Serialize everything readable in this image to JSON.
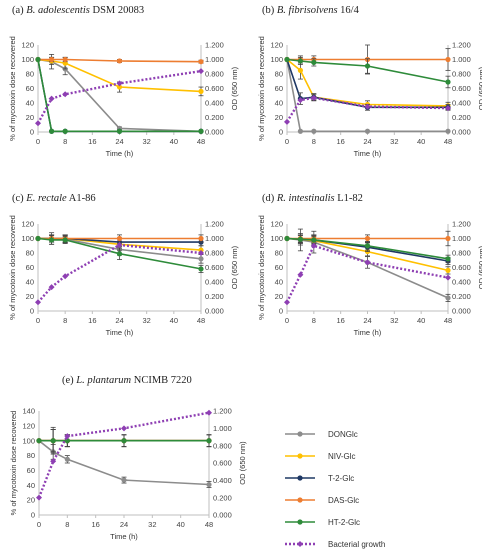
{
  "figure": {
    "legend": [
      {
        "label": "DONGlc",
        "color": "#8c8c8c",
        "marker": "circle",
        "dashed": false
      },
      {
        "label": "NIV-Glc",
        "color": "#ffc000",
        "marker": "circle",
        "dashed": false
      },
      {
        "label": "T-2-Glc",
        "color": "#1f3864",
        "marker": "circle",
        "dashed": false
      },
      {
        "label": "DAS-Glc",
        "color": "#ed7d31",
        "marker": "circle",
        "dashed": false
      },
      {
        "label": "HT-2-Glc",
        "color": "#2e8b3a",
        "marker": "circle",
        "dashed": false
      },
      {
        "label": "Bacterial growth",
        "color": "#8e3fb3",
        "marker": "diamond",
        "dashed": true
      }
    ]
  },
  "chart_data": [
    {
      "type": "line",
      "title_prefix": "(a)",
      "title_species": "B. adolescentis",
      "title_strain": "DSM 20083",
      "xlabel": "Time (h)",
      "ylabel": "% of mycotoxin dose recovered",
      "y2label": "OD (650 nm)",
      "xticks": [
        0,
        8,
        16,
        24,
        32,
        40,
        48
      ],
      "ylim": [
        0,
        120
      ],
      "yticks": [
        0,
        20,
        40,
        60,
        80,
        100,
        120
      ],
      "y2lim": [
        0,
        1.2
      ],
      "y2ticks": [
        "0.000",
        "0.200",
        "0.400",
        "0.600",
        "0.800",
        "1.000",
        "1.200"
      ],
      "series": [
        {
          "name": "DONGlc",
          "x": [
            0,
            4,
            8,
            24,
            48
          ],
          "y": [
            100,
            97,
            87,
            5,
            1
          ],
          "err": [
            0,
            10,
            8,
            2,
            0
          ]
        },
        {
          "name": "NIV-Glc",
          "x": [
            0,
            4,
            8,
            24,
            48
          ],
          "y": [
            100,
            98,
            95,
            62,
            56
          ],
          "err": [
            0,
            5,
            8,
            7,
            6
          ]
        },
        {
          "name": "T-2-Glc",
          "x": [
            0,
            4,
            8,
            24,
            48
          ],
          "y": [
            100,
            1,
            1,
            1,
            1
          ],
          "err": [
            0,
            0,
            0,
            0,
            0
          ]
        },
        {
          "name": "DAS-Glc",
          "x": [
            0,
            4,
            8,
            24,
            48
          ],
          "y": [
            100,
            100,
            100,
            98,
            97
          ],
          "err": [
            0,
            3,
            3,
            2,
            2
          ]
        },
        {
          "name": "HT-2-Glc",
          "x": [
            0,
            4,
            8,
            24,
            48
          ],
          "y": [
            100,
            1,
            1,
            1,
            1
          ],
          "err": [
            0,
            0,
            0,
            0,
            0
          ]
        },
        {
          "name": "Bacterial growth",
          "x": [
            0,
            4,
            8,
            24,
            48
          ],
          "y": [
            0.12,
            0.46,
            0.52,
            0.67,
            0.84
          ],
          "axis": "right"
        }
      ]
    },
    {
      "type": "line",
      "title_prefix": "(b)",
      "title_species": "B. fibrisolvens",
      "title_strain": "16/4",
      "xlabel": "Time (h)",
      "ylabel": "% of mycotoxin dose recovered",
      "y2label": "OD (650 nm)",
      "xticks": [
        0,
        8,
        16,
        24,
        32,
        40,
        48
      ],
      "ylim": [
        0,
        120
      ],
      "yticks": [
        0,
        20,
        40,
        60,
        80,
        100,
        120
      ],
      "y2lim": [
        0,
        1.2
      ],
      "y2ticks": [
        "0.000",
        "0.200",
        "0.400",
        "0.600",
        "0.800",
        "1.000",
        "1.200"
      ],
      "series": [
        {
          "name": "DONGlc",
          "x": [
            0,
            4,
            8,
            24,
            48
          ],
          "y": [
            100,
            1,
            1,
            1,
            1
          ],
          "err": [
            0,
            0,
            0,
            0,
            0
          ]
        },
        {
          "name": "NIV-Glc",
          "x": [
            0,
            4,
            8,
            24,
            48
          ],
          "y": [
            100,
            85,
            48,
            38,
            36
          ],
          "err": [
            0,
            12,
            5,
            5,
            5
          ]
        },
        {
          "name": "T-2-Glc",
          "x": [
            0,
            4,
            8,
            24,
            48
          ],
          "y": [
            100,
            46,
            48,
            34,
            34
          ],
          "err": [
            0,
            8,
            4,
            4,
            4
          ]
        },
        {
          "name": "DAS-Glc",
          "x": [
            0,
            4,
            8,
            24,
            48
          ],
          "y": [
            100,
            100,
            100,
            100,
            100
          ],
          "err": [
            0,
            5,
            5,
            20,
            15
          ]
        },
        {
          "name": "HT-2-Glc",
          "x": [
            0,
            4,
            8,
            24,
            48
          ],
          "y": [
            100,
            98,
            96,
            91,
            69
          ],
          "err": [
            0,
            5,
            5,
            10,
            8
          ]
        },
        {
          "name": "Bacterial growth",
          "x": [
            0,
            4,
            8,
            24,
            48
          ],
          "y": [
            0.14,
            0.44,
            0.47,
            0.35,
            0.33
          ],
          "axis": "right"
        }
      ]
    },
    {
      "type": "line",
      "title_prefix": "(c)",
      "title_species": "E. rectale",
      "title_strain": "A1-86",
      "xlabel": "Time (h)",
      "ylabel": "% of mycotoxin dose recovered",
      "y2label": "OD (650 nm)",
      "xticks": [
        0,
        8,
        16,
        24,
        32,
        40,
        48
      ],
      "ylim": [
        0,
        120
      ],
      "yticks": [
        0,
        20,
        40,
        60,
        80,
        100,
        120
      ],
      "y2lim": [
        0,
        1.2
      ],
      "y2ticks": [
        "0.000",
        "0.200",
        "0.400",
        "0.600",
        "0.800",
        "1.000",
        "1.200"
      ],
      "series": [
        {
          "name": "DONGlc",
          "x": [
            0,
            4,
            8,
            24,
            48
          ],
          "y": [
            100,
            100,
            99,
            85,
            72
          ],
          "err": [
            0,
            8,
            5,
            8,
            6
          ]
        },
        {
          "name": "NIV-Glc",
          "x": [
            0,
            4,
            8,
            24,
            48
          ],
          "y": [
            100,
            100,
            100,
            92,
            84
          ],
          "err": [
            0,
            5,
            5,
            8,
            6
          ]
        },
        {
          "name": "T-2-Glc",
          "x": [
            0,
            4,
            8,
            24,
            48
          ],
          "y": [
            100,
            100,
            100,
            95,
            95
          ],
          "err": [
            0,
            5,
            5,
            6,
            5
          ]
        },
        {
          "name": "DAS-Glc",
          "x": [
            0,
            4,
            8,
            24,
            48
          ],
          "y": [
            100,
            100,
            100,
            100,
            100
          ],
          "err": [
            0,
            5,
            5,
            5,
            5
          ]
        },
        {
          "name": "HT-2-Glc",
          "x": [
            0,
            4,
            8,
            24,
            48
          ],
          "y": [
            100,
            98,
            98,
            79,
            58
          ],
          "err": [
            0,
            6,
            5,
            8,
            5
          ]
        },
        {
          "name": "Bacterial growth",
          "x": [
            0,
            4,
            8,
            24,
            48
          ],
          "y": [
            0.12,
            0.33,
            0.48,
            0.91,
            0.8
          ],
          "axis": "right"
        }
      ]
    },
    {
      "type": "line",
      "title_prefix": "(d)",
      "title_species": "R. intestinalis",
      "title_strain": "L1-82",
      "xlabel": "Time (h)",
      "ylabel": "% of mycotoxin dose recovered",
      "y2label": "OD (650 nm)",
      "xticks": [
        0,
        8,
        16,
        24,
        32,
        40,
        48
      ],
      "ylim": [
        0,
        120
      ],
      "yticks": [
        0,
        20,
        40,
        60,
        80,
        100,
        120
      ],
      "y2lim": [
        0,
        1.2
      ],
      "y2ticks": [
        "0.000",
        "0.200",
        "0.400",
        "0.600",
        "0.800",
        "1.000",
        "1.200"
      ],
      "series": [
        {
          "name": "DONGlc",
          "x": [
            0,
            4,
            8,
            24,
            48
          ],
          "y": [
            100,
            98,
            95,
            67,
            18
          ],
          "err": [
            0,
            15,
            15,
            8,
            5
          ]
        },
        {
          "name": "NIV-Glc",
          "x": [
            0,
            4,
            8,
            24,
            48
          ],
          "y": [
            100,
            99,
            97,
            82,
            56
          ],
          "err": [
            0,
            8,
            8,
            6,
            5
          ]
        },
        {
          "name": "T-2-Glc",
          "x": [
            0,
            4,
            8,
            24,
            48
          ],
          "y": [
            100,
            99,
            98,
            88,
            69
          ],
          "err": [
            0,
            6,
            6,
            6,
            5
          ]
        },
        {
          "name": "DAS-Glc",
          "x": [
            0,
            4,
            8,
            24,
            48
          ],
          "y": [
            100,
            100,
            100,
            100,
            100
          ],
          "err": [
            0,
            5,
            5,
            5,
            10
          ]
        },
        {
          "name": "HT-2-Glc",
          "x": [
            0,
            4,
            8,
            24,
            48
          ],
          "y": [
            100,
            99,
            98,
            90,
            72
          ],
          "err": [
            0,
            5,
            5,
            6,
            5
          ]
        },
        {
          "name": "Bacterial growth",
          "x": [
            0,
            4,
            8,
            24,
            48
          ],
          "y": [
            0.12,
            0.5,
            0.9,
            0.67,
            0.46
          ],
          "axis": "right"
        }
      ]
    },
    {
      "type": "line",
      "title_prefix": "(e)",
      "title_species": "L. plantarum",
      "title_strain": "NCIMB 7220",
      "xlabel": "Time (h)",
      "ylabel": "% of mycotoxin dose recovered",
      "y2label": "OD (650 nm)",
      "xticks": [
        0,
        8,
        16,
        24,
        32,
        40,
        48
      ],
      "ylim": [
        0,
        140
      ],
      "yticks": [
        0,
        20,
        40,
        60,
        80,
        100,
        120,
        140
      ],
      "y2lim": [
        0,
        1.2
      ],
      "y2ticks": [
        "0.000",
        "0.200",
        "0.400",
        "0.600",
        "0.800",
        "1.000",
        "1.200"
      ],
      "series": [
        {
          "name": "DONGlc",
          "x": [
            0,
            4,
            8,
            24,
            48
          ],
          "y": [
            100,
            85,
            75,
            47,
            41
          ],
          "err": [
            0,
            10,
            5,
            4,
            4
          ]
        },
        {
          "name": "NIV-Glc",
          "x": [
            0,
            4,
            8,
            24,
            48
          ],
          "y": [
            100,
            100,
            100,
            100,
            100
          ],
          "err": [
            0,
            15,
            8,
            8,
            8
          ]
        },
        {
          "name": "T-2-Glc",
          "x": [
            0,
            4,
            8,
            24,
            48
          ],
          "y": [
            100,
            100,
            100,
            100,
            100
          ],
          "err": [
            0,
            15,
            8,
            8,
            8
          ]
        },
        {
          "name": "DAS-Glc",
          "x": [
            0,
            4,
            8,
            24,
            48
          ],
          "y": [
            100,
            100,
            100,
            100,
            100
          ],
          "err": [
            0,
            18,
            8,
            8,
            8
          ]
        },
        {
          "name": "HT-2-Glc",
          "x": [
            0,
            4,
            8,
            24,
            48
          ],
          "y": [
            100,
            100,
            100,
            100,
            100
          ],
          "err": [
            0,
            15,
            8,
            8,
            8
          ]
        },
        {
          "name": "Bacterial growth",
          "x": [
            0,
            4,
            8,
            24,
            48
          ],
          "y": [
            0.2,
            0.62,
            0.91,
            1.0,
            1.18
          ],
          "axis": "right"
        }
      ]
    }
  ]
}
